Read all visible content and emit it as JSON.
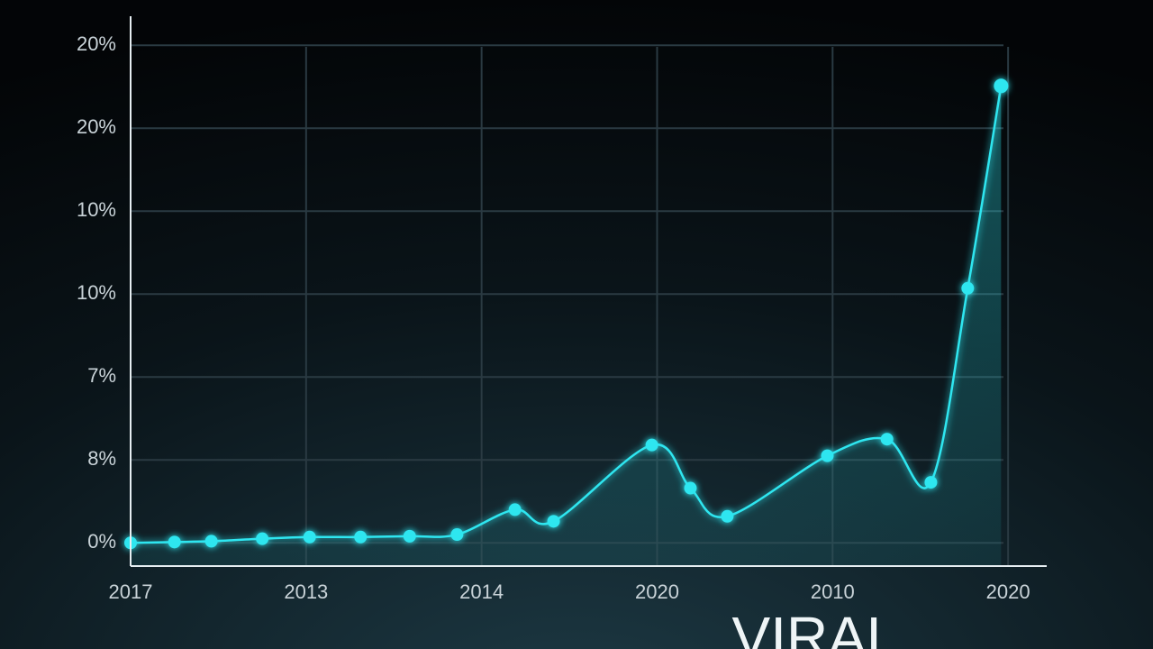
{
  "chart_data": {
    "type": "line",
    "caption": "VIRAL",
    "x": [
      0,
      0.25,
      0.46,
      0.75,
      1.02,
      1.31,
      1.59,
      1.86,
      2.19,
      2.41,
      2.97,
      3.19,
      3.4,
      3.97,
      4.31,
      4.56,
      4.77,
      4.96
    ],
    "series": [
      {
        "color": "#2ee6f0",
        "values": [
          0,
          0.01,
          0.02,
          0.05,
          0.07,
          0.07,
          0.08,
          0.1,
          0.4,
          0.26,
          1.18,
          0.66,
          0.32,
          1.05,
          1.25,
          0.73,
          3.07,
          5.51
        ]
      }
    ],
    "xlim": [
      0,
      5.22
    ],
    "ylim": [
      -0.28,
      6.35
    ],
    "xticks": [
      {
        "value": 0,
        "label": "2017"
      },
      {
        "value": 1,
        "label": "2013"
      },
      {
        "value": 2,
        "label": "2014"
      },
      {
        "value": 3,
        "label": "2020"
      },
      {
        "value": 4,
        "label": "2010"
      },
      {
        "value": 5,
        "label": "2020"
      }
    ],
    "yticks": [
      {
        "value": 0,
        "label": "0%"
      },
      {
        "value": 1,
        "label": "8%"
      },
      {
        "value": 2,
        "label": "7%"
      },
      {
        "value": 3,
        "label": "10%"
      },
      {
        "value": 4,
        "label": "10%"
      },
      {
        "value": 5,
        "label": "20%"
      },
      {
        "value": 6,
        "label": "20%"
      }
    ],
    "grid": true
  }
}
